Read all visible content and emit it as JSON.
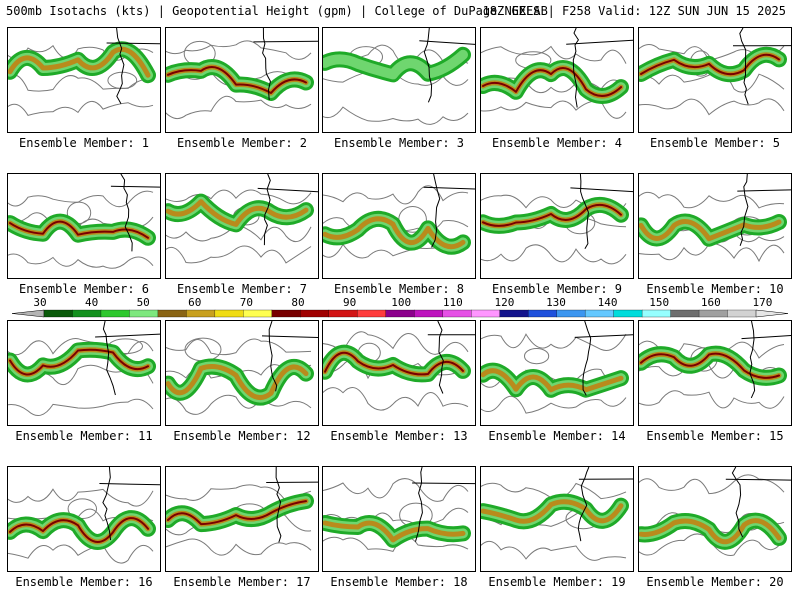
{
  "header": {
    "title": "500mb Isotachs (kts) | Geopotential Height (gpm) | College of DuPage NEXLAB",
    "run": "18Z GEFS | F258 Valid: 12Z SUN JUN 15 2025"
  },
  "colorbar": {
    "labels": [
      "30",
      "40",
      "50",
      "60",
      "70",
      "80",
      "90",
      "100",
      "110",
      "120",
      "130",
      "140",
      "150",
      "160",
      "170"
    ],
    "colors": [
      "#0a5a0a",
      "#14911e",
      "#2ec82e",
      "#7ee87e",
      "#8a6414",
      "#c8a01e",
      "#f0dc14",
      "#ffff50",
      "#780000",
      "#a00000",
      "#d21414",
      "#ff3c3c",
      "#8c008c",
      "#be14be",
      "#e650e6",
      "#ff96ff",
      "#14148c",
      "#1e50dc",
      "#3c96f0",
      "#64c8ff",
      "#00dcdc",
      "#96ffff",
      "#6e6e6e",
      "#a0a0a0",
      "#d2d2d2"
    ],
    "triangle_left": "#b4b4b4",
    "triangle_right": "#e6e6e6"
  },
  "styles": {
    "map_line": "#000000",
    "height_contour": "#7a7a7a",
    "jet_outer": "#1faa28",
    "jet_mid": "#6fd66f",
    "jet_core_a": "#b98b1c",
    "jet_core_b": "#7a0000"
  },
  "panels": [
    {
      "label": "Ensemble Member: 1",
      "intensity": 2
    },
    {
      "label": "Ensemble Member: 2",
      "intensity": 3
    },
    {
      "label": "Ensemble Member: 3",
      "intensity": 1
    },
    {
      "label": "Ensemble Member: 4",
      "intensity": 3
    },
    {
      "label": "Ensemble Member: 5",
      "intensity": 3
    },
    {
      "label": "Ensemble Member: 6",
      "intensity": 3
    },
    {
      "label": "Ensemble Member: 7",
      "intensity": 2
    },
    {
      "label": "Ensemble Member: 8",
      "intensity": 2
    },
    {
      "label": "Ensemble Member: 9",
      "intensity": 3
    },
    {
      "label": "Ensemble Member: 10",
      "intensity": 2
    },
    {
      "label": "Ensemble Member: 11",
      "intensity": 3
    },
    {
      "label": "Ensemble Member: 12",
      "intensity": 2
    },
    {
      "label": "Ensemble Member: 13",
      "intensity": 3
    },
    {
      "label": "Ensemble Member: 14",
      "intensity": 2
    },
    {
      "label": "Ensemble Member: 15",
      "intensity": 3
    },
    {
      "label": "Ensemble Member: 16",
      "intensity": 3
    },
    {
      "label": "Ensemble Member: 17",
      "intensity": 3
    },
    {
      "label": "Ensemble Member: 18",
      "intensity": 2
    },
    {
      "label": "Ensemble Member: 19",
      "intensity": 2
    },
    {
      "label": "Ensemble Member: 20",
      "intensity": 2
    }
  ]
}
